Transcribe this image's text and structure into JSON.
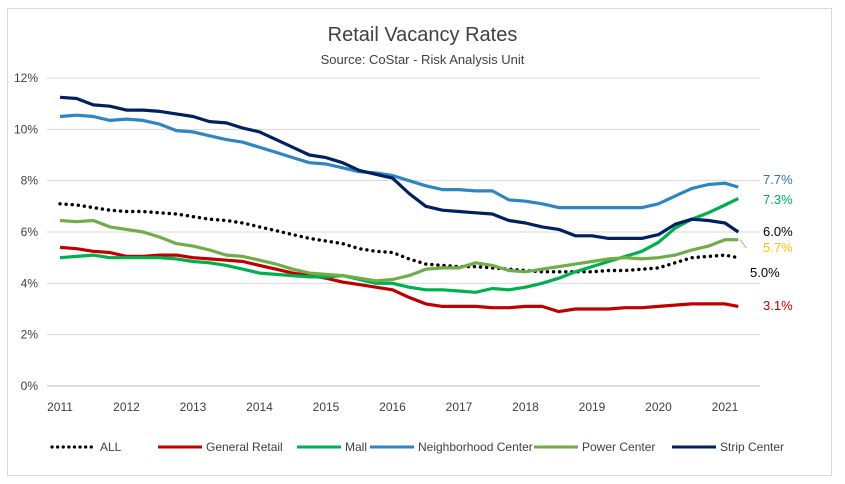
{
  "chart_data": {
    "type": "line",
    "title": "Retail Vacancy Rates",
    "subtitle": "Source: CoStar - Risk Analysis Unit",
    "xlabel": "",
    "ylabel": "",
    "xlim": [
      2011,
      2021.3
    ],
    "ylim": [
      0,
      12
    ],
    "x_ticks": [
      "2011",
      "2012",
      "2013",
      "2014",
      "2015",
      "2016",
      "2017",
      "2018",
      "2019",
      "2020",
      "2021"
    ],
    "y_ticks": [
      "0%",
      "2%",
      "4%",
      "6%",
      "8%",
      "10%",
      "12%"
    ],
    "grid": "horizontal",
    "legend_position": "bottom",
    "series": [
      {
        "name": "ALL",
        "color": "#000000",
        "style": "dotted",
        "end_label": "5.0%",
        "end_label_color": "#000000",
        "points": [
          [
            2011,
            7.1
          ],
          [
            2011.25,
            7.05
          ],
          [
            2011.5,
            6.95
          ],
          [
            2011.75,
            6.85
          ],
          [
            2012,
            6.8
          ],
          [
            2012.25,
            6.8
          ],
          [
            2012.5,
            6.75
          ],
          [
            2012.75,
            6.7
          ],
          [
            2013,
            6.6
          ],
          [
            2013.25,
            6.5
          ],
          [
            2013.5,
            6.45
          ],
          [
            2013.75,
            6.35
          ],
          [
            2014,
            6.2
          ],
          [
            2014.25,
            6.05
          ],
          [
            2014.5,
            5.9
          ],
          [
            2014.75,
            5.75
          ],
          [
            2015,
            5.65
          ],
          [
            2015.25,
            5.55
          ],
          [
            2015.5,
            5.35
          ],
          [
            2015.75,
            5.25
          ],
          [
            2016,
            5.2
          ],
          [
            2016.25,
            4.95
          ],
          [
            2016.5,
            4.75
          ],
          [
            2016.75,
            4.7
          ],
          [
            2017,
            4.65
          ],
          [
            2017.25,
            4.65
          ],
          [
            2017.5,
            4.6
          ],
          [
            2017.75,
            4.55
          ],
          [
            2018,
            4.5
          ],
          [
            2018.25,
            4.45
          ],
          [
            2018.5,
            4.45
          ],
          [
            2018.75,
            4.45
          ],
          [
            2019,
            4.45
          ],
          [
            2019.25,
            4.5
          ],
          [
            2019.5,
            4.5
          ],
          [
            2019.75,
            4.55
          ],
          [
            2020,
            4.6
          ],
          [
            2020.25,
            4.8
          ],
          [
            2020.5,
            5.0
          ],
          [
            2020.75,
            5.05
          ],
          [
            2021,
            5.1
          ],
          [
            2021.2,
            5.0
          ]
        ]
      },
      {
        "name": "General Retail",
        "color": "#c00000",
        "style": "solid",
        "end_label": "3.1%",
        "end_label_color": "#c00000",
        "points": [
          [
            2011,
            5.4
          ],
          [
            2011.25,
            5.35
          ],
          [
            2011.5,
            5.25
          ],
          [
            2011.75,
            5.2
          ],
          [
            2012,
            5.05
          ],
          [
            2012.25,
            5.05
          ],
          [
            2012.5,
            5.1
          ],
          [
            2012.75,
            5.1
          ],
          [
            2013,
            5.0
          ],
          [
            2013.25,
            4.95
          ],
          [
            2013.5,
            4.9
          ],
          [
            2013.75,
            4.85
          ],
          [
            2014,
            4.7
          ],
          [
            2014.25,
            4.55
          ],
          [
            2014.5,
            4.4
          ],
          [
            2014.75,
            4.3
          ],
          [
            2015,
            4.2
          ],
          [
            2015.25,
            4.05
          ],
          [
            2015.5,
            3.95
          ],
          [
            2015.75,
            3.85
          ],
          [
            2016,
            3.75
          ],
          [
            2016.25,
            3.45
          ],
          [
            2016.5,
            3.2
          ],
          [
            2016.75,
            3.1
          ],
          [
            2017,
            3.1
          ],
          [
            2017.25,
            3.1
          ],
          [
            2017.5,
            3.05
          ],
          [
            2017.75,
            3.05
          ],
          [
            2018,
            3.1
          ],
          [
            2018.25,
            3.1
          ],
          [
            2018.5,
            2.9
          ],
          [
            2018.75,
            3.0
          ],
          [
            2019,
            3.0
          ],
          [
            2019.25,
            3.0
          ],
          [
            2019.5,
            3.05
          ],
          [
            2019.75,
            3.05
          ],
          [
            2020,
            3.1
          ],
          [
            2020.25,
            3.15
          ],
          [
            2020.5,
            3.2
          ],
          [
            2020.75,
            3.2
          ],
          [
            2021,
            3.2
          ],
          [
            2021.2,
            3.1
          ]
        ]
      },
      {
        "name": "Mall",
        "color": "#00b050",
        "style": "solid",
        "end_label": "7.3%",
        "end_label_color": "#00b050",
        "points": [
          [
            2011,
            5.0
          ],
          [
            2011.25,
            5.05
          ],
          [
            2011.5,
            5.1
          ],
          [
            2011.75,
            5.0
          ],
          [
            2012,
            5.0
          ],
          [
            2012.25,
            5.0
          ],
          [
            2012.5,
            5.0
          ],
          [
            2012.75,
            4.95
          ],
          [
            2013,
            4.85
          ],
          [
            2013.25,
            4.8
          ],
          [
            2013.5,
            4.7
          ],
          [
            2013.75,
            4.55
          ],
          [
            2014,
            4.4
          ],
          [
            2014.25,
            4.35
          ],
          [
            2014.5,
            4.3
          ],
          [
            2014.75,
            4.25
          ],
          [
            2015,
            4.25
          ],
          [
            2015.25,
            4.3
          ],
          [
            2015.5,
            4.15
          ],
          [
            2015.75,
            4.0
          ],
          [
            2016,
            4.0
          ],
          [
            2016.25,
            3.85
          ],
          [
            2016.5,
            3.75
          ],
          [
            2016.75,
            3.75
          ],
          [
            2017,
            3.7
          ],
          [
            2017.25,
            3.65
          ],
          [
            2017.5,
            3.8
          ],
          [
            2017.75,
            3.75
          ],
          [
            2018,
            3.85
          ],
          [
            2018.25,
            4.0
          ],
          [
            2018.5,
            4.2
          ],
          [
            2018.75,
            4.45
          ],
          [
            2019,
            4.65
          ],
          [
            2019.25,
            4.85
          ],
          [
            2019.5,
            5.05
          ],
          [
            2019.75,
            5.25
          ],
          [
            2020,
            5.6
          ],
          [
            2020.25,
            6.15
          ],
          [
            2020.5,
            6.5
          ],
          [
            2020.75,
            6.75
          ],
          [
            2021,
            7.05
          ],
          [
            2021.2,
            7.3
          ]
        ]
      },
      {
        "name": "Neighborhood Center",
        "color": "#2e86c1",
        "style": "solid",
        "end_label": "7.7%",
        "end_label_color": "#2e75b6",
        "points": [
          [
            2011,
            10.5
          ],
          [
            2011.25,
            10.55
          ],
          [
            2011.5,
            10.5
          ],
          [
            2011.75,
            10.35
          ],
          [
            2012,
            10.4
          ],
          [
            2012.25,
            10.35
          ],
          [
            2012.5,
            10.2
          ],
          [
            2012.75,
            9.95
          ],
          [
            2013,
            9.9
          ],
          [
            2013.25,
            9.75
          ],
          [
            2013.5,
            9.6
          ],
          [
            2013.75,
            9.5
          ],
          [
            2014,
            9.3
          ],
          [
            2014.25,
            9.1
          ],
          [
            2014.5,
            8.9
          ],
          [
            2014.75,
            8.7
          ],
          [
            2015,
            8.65
          ],
          [
            2015.25,
            8.5
          ],
          [
            2015.5,
            8.35
          ],
          [
            2015.75,
            8.3
          ],
          [
            2016,
            8.2
          ],
          [
            2016.25,
            8.0
          ],
          [
            2016.5,
            7.8
          ],
          [
            2016.75,
            7.65
          ],
          [
            2017,
            7.65
          ],
          [
            2017.25,
            7.6
          ],
          [
            2017.5,
            7.6
          ],
          [
            2017.75,
            7.25
          ],
          [
            2018,
            7.2
          ],
          [
            2018.25,
            7.1
          ],
          [
            2018.5,
            6.95
          ],
          [
            2018.75,
            6.95
          ],
          [
            2019,
            6.95
          ],
          [
            2019.25,
            6.95
          ],
          [
            2019.5,
            6.95
          ],
          [
            2019.75,
            6.95
          ],
          [
            2020,
            7.1
          ],
          [
            2020.25,
            7.4
          ],
          [
            2020.5,
            7.7
          ],
          [
            2020.75,
            7.85
          ],
          [
            2021,
            7.9
          ],
          [
            2021.2,
            7.75
          ]
        ]
      },
      {
        "name": "Power Center",
        "color": "#70ad47",
        "style": "solid",
        "end_label": "5.7%",
        "end_label_color": "#ffc000",
        "points": [
          [
            2011,
            6.45
          ],
          [
            2011.25,
            6.4
          ],
          [
            2011.5,
            6.45
          ],
          [
            2011.75,
            6.2
          ],
          [
            2012,
            6.1
          ],
          [
            2012.25,
            6.0
          ],
          [
            2012.5,
            5.8
          ],
          [
            2012.75,
            5.55
          ],
          [
            2013,
            5.45
          ],
          [
            2013.25,
            5.3
          ],
          [
            2013.5,
            5.1
          ],
          [
            2013.75,
            5.05
          ],
          [
            2014,
            4.9
          ],
          [
            2014.25,
            4.75
          ],
          [
            2014.5,
            4.55
          ],
          [
            2014.75,
            4.4
          ],
          [
            2015,
            4.35
          ],
          [
            2015.25,
            4.3
          ],
          [
            2015.5,
            4.2
          ],
          [
            2015.75,
            4.1
          ],
          [
            2016,
            4.15
          ],
          [
            2016.25,
            4.3
          ],
          [
            2016.5,
            4.55
          ],
          [
            2016.75,
            4.6
          ],
          [
            2017,
            4.6
          ],
          [
            2017.25,
            4.8
          ],
          [
            2017.5,
            4.7
          ],
          [
            2017.75,
            4.5
          ],
          [
            2018,
            4.45
          ],
          [
            2018.25,
            4.55
          ],
          [
            2018.5,
            4.65
          ],
          [
            2018.75,
            4.75
          ],
          [
            2019,
            4.85
          ],
          [
            2019.25,
            4.95
          ],
          [
            2019.5,
            5.0
          ],
          [
            2019.75,
            4.95
          ],
          [
            2020,
            5.0
          ],
          [
            2020.25,
            5.1
          ],
          [
            2020.5,
            5.3
          ],
          [
            2020.75,
            5.45
          ],
          [
            2021,
            5.7
          ],
          [
            2021.2,
            5.7
          ]
        ]
      },
      {
        "name": "Strip Center",
        "color": "#002060",
        "style": "solid",
        "end_label": "6.0%",
        "end_label_color": "#000000",
        "points": [
          [
            2011,
            11.25
          ],
          [
            2011.25,
            11.2
          ],
          [
            2011.5,
            10.95
          ],
          [
            2011.75,
            10.9
          ],
          [
            2012,
            10.75
          ],
          [
            2012.25,
            10.75
          ],
          [
            2012.5,
            10.7
          ],
          [
            2012.75,
            10.6
          ],
          [
            2013,
            10.5
          ],
          [
            2013.25,
            10.3
          ],
          [
            2013.5,
            10.25
          ],
          [
            2013.75,
            10.05
          ],
          [
            2014,
            9.9
          ],
          [
            2014.25,
            9.6
          ],
          [
            2014.5,
            9.3
          ],
          [
            2014.75,
            9.0
          ],
          [
            2015,
            8.9
          ],
          [
            2015.25,
            8.7
          ],
          [
            2015.5,
            8.4
          ],
          [
            2015.75,
            8.25
          ],
          [
            2016,
            8.1
          ],
          [
            2016.25,
            7.5
          ],
          [
            2016.5,
            7.0
          ],
          [
            2016.75,
            6.85
          ],
          [
            2017,
            6.8
          ],
          [
            2017.25,
            6.75
          ],
          [
            2017.5,
            6.7
          ],
          [
            2017.75,
            6.45
          ],
          [
            2018,
            6.35
          ],
          [
            2018.25,
            6.2
          ],
          [
            2018.5,
            6.1
          ],
          [
            2018.75,
            5.85
          ],
          [
            2019,
            5.85
          ],
          [
            2019.25,
            5.75
          ],
          [
            2019.5,
            5.75
          ],
          [
            2019.75,
            5.75
          ],
          [
            2020,
            5.9
          ],
          [
            2020.25,
            6.3
          ],
          [
            2020.5,
            6.5
          ],
          [
            2020.75,
            6.45
          ],
          [
            2021,
            6.35
          ],
          [
            2021.2,
            6.0
          ]
        ]
      }
    ]
  }
}
